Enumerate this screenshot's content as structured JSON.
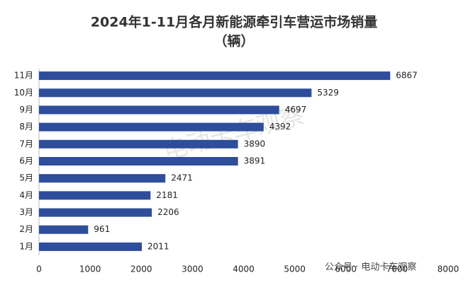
{
  "chart_data": {
    "type": "barh",
    "title": "2024年1-11月各月新能源牵引车营运市场销量",
    "subtitle": "（辆）",
    "categories": [
      "11月",
      "10月",
      "9月",
      "8月",
      "7月",
      "6月",
      "5月",
      "4月",
      "3月",
      "2月",
      "1月"
    ],
    "values": [
      6867,
      5329,
      4697,
      4392,
      3890,
      3891,
      2471,
      2181,
      2206,
      961,
      2011
    ],
    "color": "#2e4d9b",
    "xlim": [
      0,
      8000
    ],
    "xticks": [
      0,
      1000,
      2000,
      3000,
      4000,
      5000,
      6000,
      7000,
      8000
    ],
    "annotations": [
      "电动卡车观察",
      "公众号 · 电动卡车观察"
    ]
  }
}
